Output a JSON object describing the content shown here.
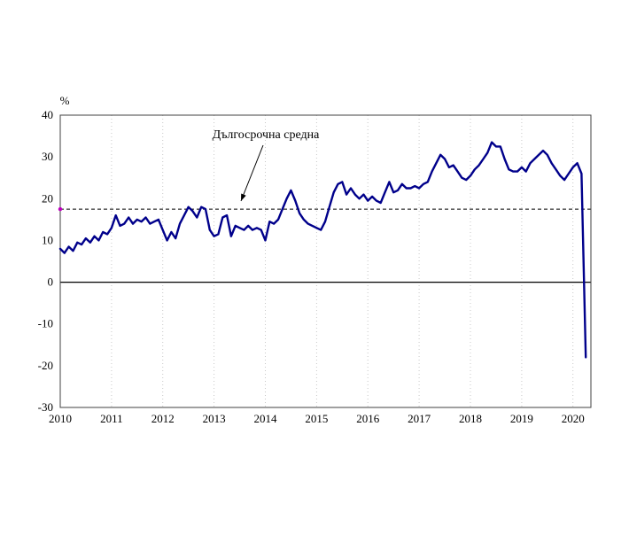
{
  "chart": {
    "unit_label": "%",
    "annotation_label": "Дългосрочна средна"
  },
  "chart_data": {
    "type": "line",
    "title": "",
    "xlabel": "",
    "ylabel": "%",
    "ylim": [
      -30,
      40
    ],
    "yticks": [
      40,
      30,
      20,
      10,
      0,
      -10,
      -20,
      -30
    ],
    "xticks": [
      2010,
      2011,
      2012,
      2013,
      2014,
      2015,
      2016,
      2017,
      2018,
      2019,
      2020
    ],
    "xlim": [
      2010,
      2020.35
    ],
    "grid": "vertical-dashed",
    "legend_position": "none",
    "line_color": "#00008B",
    "zero_line_color": "#000000",
    "grid_color": "#c8c8c8",
    "average_line": {
      "value": 17.5,
      "label": "Дългосрочна средна",
      "style": "dashed",
      "color": "#000000",
      "marker_color": "#C000C0"
    },
    "series": [
      {
        "name": "",
        "x_start": 2010,
        "x_step": "monthly",
        "values": [
          8,
          7,
          8.5,
          7.5,
          9.5,
          9,
          10.5,
          9.5,
          11,
          10,
          12,
          11.5,
          13,
          16,
          13.5,
          14,
          15.5,
          14,
          15,
          14.5,
          15.5,
          14,
          14.5,
          15,
          12.5,
          10,
          12,
          10.5,
          14,
          16,
          18,
          17,
          15.5,
          18,
          17.5,
          12.5,
          11,
          11.5,
          15.5,
          16,
          11,
          13.5,
          13,
          12.5,
          13.5,
          12.5,
          13,
          12.5,
          10,
          14.5,
          14,
          15,
          17.5,
          20,
          22,
          19.5,
          16.5,
          15,
          14,
          13.5,
          13,
          12.5,
          14.5,
          18,
          21.5,
          23.5,
          24,
          21,
          22.5,
          21,
          20,
          21,
          19.5,
          20.5,
          19.5,
          19,
          21.5,
          24,
          21.5,
          22,
          23.5,
          22.5,
          22.5,
          23,
          22.5,
          23.5,
          24,
          26.5,
          28.5,
          30.5,
          29.5,
          27.5,
          28,
          26.5,
          25,
          24.5,
          25.5,
          27,
          28,
          29.5,
          31,
          33.5,
          32.5,
          32.5,
          29.5,
          27,
          26.5,
          26.5,
          27.5,
          26.5,
          28.5,
          29.5,
          30.5,
          31.5,
          30.5,
          28.5,
          27,
          25.5,
          24.5,
          26,
          27.5,
          28.5,
          26,
          -18
        ]
      }
    ]
  }
}
